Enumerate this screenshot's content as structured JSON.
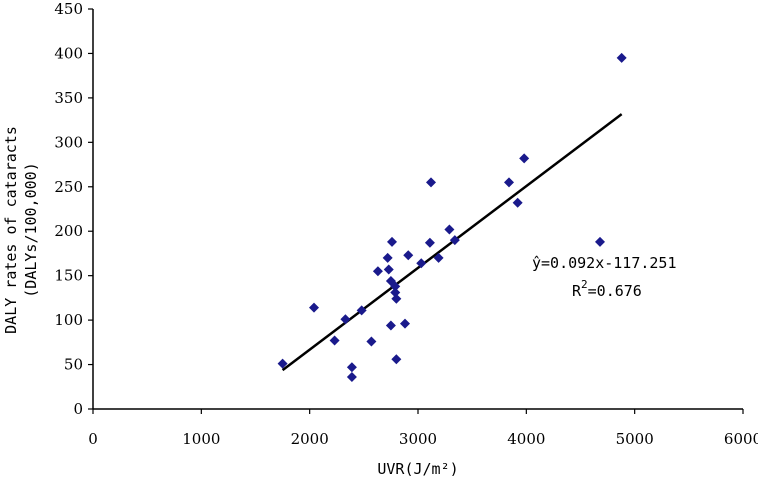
{
  "chart_data": {
    "type": "scatter",
    "xlabel": "UVR(J/m²)",
    "ylabel_line1": "DALY rates of cataracts",
    "ylabel_line2": "(DALYs/100,000)",
    "xlim": [
      0,
      6000
    ],
    "ylim": [
      0,
      450
    ],
    "x_ticks": [
      "0",
      "1000",
      "2000",
      "3000",
      "4000",
      "5000",
      "6000"
    ],
    "y_ticks": [
      "0",
      "50",
      "100",
      "150",
      "200",
      "250",
      "300",
      "350",
      "400",
      "450"
    ],
    "grid": false,
    "legend": "none",
    "marker_color": "#1a1a8c",
    "trendline": {
      "slope": 0.092,
      "intercept": -117.251,
      "x_range": [
        1750,
        4880
      ]
    },
    "equation_text": "ŷ=0.092x-117.251",
    "r2_prefix": "R",
    "r2_sup": "2",
    "r2_value": "=0.676",
    "points": [
      [
        1750,
        51
      ],
      [
        2040,
        114
      ],
      [
        2230,
        77
      ],
      [
        2330,
        101
      ],
      [
        2390,
        47
      ],
      [
        2390,
        36
      ],
      [
        2480,
        111
      ],
      [
        2570,
        76
      ],
      [
        2630,
        155
      ],
      [
        2720,
        170
      ],
      [
        2730,
        157
      ],
      [
        2760,
        188
      ],
      [
        2750,
        144
      ],
      [
        2750,
        94
      ],
      [
        2790,
        138
      ],
      [
        2790,
        131
      ],
      [
        2800,
        124
      ],
      [
        2800,
        56
      ],
      [
        2880,
        96
      ],
      [
        2910,
        173
      ],
      [
        3030,
        164
      ],
      [
        3110,
        187
      ],
      [
        3120,
        255
      ],
      [
        3190,
        170
      ],
      [
        3290,
        202
      ],
      [
        3340,
        190
      ],
      [
        3840,
        255
      ],
      [
        3920,
        232
      ],
      [
        3980,
        282
      ],
      [
        4680,
        188
      ],
      [
        4880,
        395
      ]
    ]
  }
}
